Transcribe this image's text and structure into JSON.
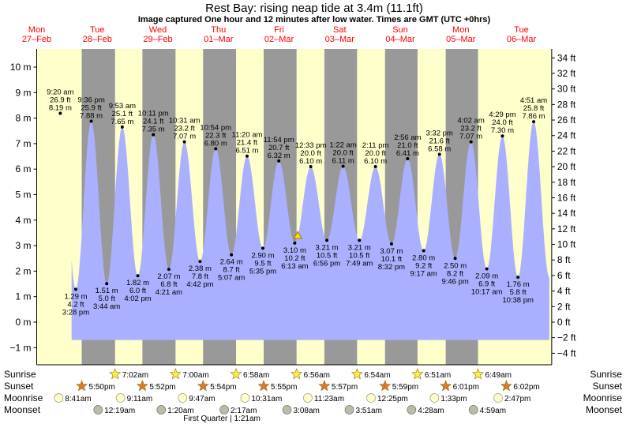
{
  "header": {
    "title": "Rest Bay: rising  neap tide at 3.4m (11.1ft)",
    "subtitle": "Image captured One hour and 12 minutes after low water. Times are GMT (UTC +0hrs)"
  },
  "colors": {
    "day": "#ffffcc",
    "night": "#999999",
    "tide": "#aab0ff",
    "day_label": "#ff0000"
  },
  "chart_data": {
    "type": "area",
    "title": "Rest Bay: rising  neap tide at 3.4m (11.1ft)",
    "x_axis": "time (days, GMT), 27-Feb to 06-Mar",
    "y_left_unit": "m",
    "y_right_unit": "ft",
    "ylim_m": [
      -1.5,
      10.9
    ],
    "grid": false,
    "days": [
      {
        "dow": "Mon",
        "date": "27–Feb"
      },
      {
        "dow": "Tue",
        "date": "28–Feb"
      },
      {
        "dow": "Wed",
        "date": "29–Feb"
      },
      {
        "dow": "Thu",
        "date": "01–Mar"
      },
      {
        "dow": "Fri",
        "date": "02–Mar"
      },
      {
        "dow": "Sat",
        "date": "03–Mar"
      },
      {
        "dow": "Sun",
        "date": "04–Mar"
      },
      {
        "dow": "Mon",
        "date": "05–Mar"
      },
      {
        "dow": "Tue",
        "date": "06–Mar"
      }
    ],
    "y_ticks_m": [
      -1,
      0,
      1,
      2,
      3,
      4,
      5,
      6,
      7,
      8,
      9,
      10
    ],
    "y_tick_labels_m": [
      "−1 m",
      "0 m",
      "1 m",
      "2 m",
      "3 m",
      "4 m",
      "5 m",
      "6 m",
      "7 m",
      "8 m",
      "9 m",
      "10 m"
    ],
    "y_ticks_ft": [
      -4,
      -2,
      0,
      2,
      4,
      6,
      8,
      10,
      12,
      14,
      16,
      18,
      20,
      22,
      24,
      26,
      28,
      30,
      32,
      34
    ],
    "y_tick_labels_ft": [
      "−4 ft",
      "−2 ft",
      "0 ft",
      "2 ft",
      "4 ft",
      "6 ft",
      "8 ft",
      "10 ft",
      "12 ft",
      "14 ft",
      "16 ft",
      "18 ft",
      "20 ft",
      "22 ft",
      "24 ft",
      "26 ft",
      "28 ft",
      "30 ft",
      "32 ft",
      "34 ft"
    ],
    "tides": [
      {
        "day": 0,
        "hour": 9.333,
        "m": 8.19,
        "time": "9:20 am",
        "ft": "26.9 ft",
        "mlabel": "8.19 m",
        "kind": "high"
      },
      {
        "day": 0,
        "hour": 15.467,
        "m": 1.29,
        "time": "3:28 pm",
        "ft": "4.2 ft",
        "mlabel": "1.29 m",
        "kind": "low"
      },
      {
        "day": 0,
        "hour": 21.6,
        "m": 7.88,
        "time": "9:36 pm",
        "ft": "25.9 ft",
        "mlabel": "7.88 m",
        "kind": "high"
      },
      {
        "day": 1,
        "hour": 3.733,
        "m": 1.51,
        "time": "3:44 am",
        "ft": "5.0 ft",
        "mlabel": "1.51 m",
        "kind": "low"
      },
      {
        "day": 1,
        "hour": 9.883,
        "m": 7.65,
        "time": "9:53 am",
        "ft": "25.1 ft",
        "mlabel": "7.65 m",
        "kind": "high"
      },
      {
        "day": 1,
        "hour": 16.033,
        "m": 1.82,
        "time": "4:02 pm",
        "ft": "6.0 ft",
        "mlabel": "1.82 m",
        "kind": "low"
      },
      {
        "day": 1,
        "hour": 22.183,
        "m": 7.35,
        "time": "10:11 pm",
        "ft": "24.1 ft",
        "mlabel": "7.35 m",
        "kind": "high"
      },
      {
        "day": 2,
        "hour": 4.35,
        "m": 2.07,
        "time": "4:21 am",
        "ft": "6.8 ft",
        "mlabel": "2.07 m",
        "kind": "low"
      },
      {
        "day": 2,
        "hour": 10.517,
        "m": 7.07,
        "time": "10:31 am",
        "ft": "23.2 ft",
        "mlabel": "7.07 m",
        "kind": "high"
      },
      {
        "day": 2,
        "hour": 16.7,
        "m": 2.38,
        "time": "4:42 pm",
        "ft": "7.8 ft",
        "mlabel": "2.38 m",
        "kind": "low"
      },
      {
        "day": 2,
        "hour": 22.9,
        "m": 6.8,
        "time": "10:54 pm",
        "ft": "22.3 ft",
        "mlabel": "6.80 m",
        "kind": "high"
      },
      {
        "day": 3,
        "hour": 5.117,
        "m": 2.64,
        "time": "5:07 am",
        "ft": "8.7 ft",
        "mlabel": "2.64 m",
        "kind": "low"
      },
      {
        "day": 3,
        "hour": 11.333,
        "m": 6.51,
        "time": "11:20 am",
        "ft": "21.4 ft",
        "mlabel": "6.51 m",
        "kind": "high"
      },
      {
        "day": 3,
        "hour": 17.583,
        "m": 2.9,
        "time": "5:35 pm",
        "ft": "9.5 ft",
        "mlabel": "2.90 m",
        "kind": "low"
      },
      {
        "day": 3,
        "hour": 23.9,
        "m": 6.32,
        "time": "11:54 pm",
        "ft": "20.7 ft",
        "mlabel": "6.32 m",
        "kind": "high"
      },
      {
        "day": 4,
        "hour": 6.217,
        "m": 3.1,
        "time": "6:13 am",
        "ft": "10.2 ft",
        "mlabel": "3.10 m",
        "kind": "low"
      },
      {
        "day": 4,
        "hour": 12.55,
        "m": 6.1,
        "time": "12:33 pm",
        "ft": "20.0 ft",
        "mlabel": "6.10 m",
        "kind": "high"
      },
      {
        "day": 4,
        "hour": 18.933,
        "m": 3.21,
        "time": "6:56 pm",
        "ft": "10.5 ft",
        "mlabel": "3.21 m",
        "kind": "low"
      },
      {
        "day": 5,
        "hour": 1.367,
        "m": 6.11,
        "time": "1:22 am",
        "ft": "20.0 ft",
        "mlabel": "6.11 m",
        "kind": "high"
      },
      {
        "day": 5,
        "hour": 7.817,
        "m": 3.21,
        "time": "7:49 am",
        "ft": "10.5 ft",
        "mlabel": "3.21 m",
        "kind": "low"
      },
      {
        "day": 5,
        "hour": 14.183,
        "m": 6.1,
        "time": "2:11 pm",
        "ft": "20.0 ft",
        "mlabel": "6.10 m",
        "kind": "high"
      },
      {
        "day": 5,
        "hour": 20.533,
        "m": 3.07,
        "time": "8:32 pm",
        "ft": "10.1 ft",
        "mlabel": "3.07 m",
        "kind": "low"
      },
      {
        "day": 6,
        "hour": 2.933,
        "m": 6.41,
        "time": "2:56 am",
        "ft": "21.0 ft",
        "mlabel": "6.41 m",
        "kind": "high"
      },
      {
        "day": 6,
        "hour": 9.283,
        "m": 2.8,
        "time": "9:17 am",
        "ft": "9.2 ft",
        "mlabel": "2.80 m",
        "kind": "low"
      },
      {
        "day": 6,
        "hour": 15.533,
        "m": 6.58,
        "time": "3:32 pm",
        "ft": "21.6 ft",
        "mlabel": "6.58 m",
        "kind": "high"
      },
      {
        "day": 6,
        "hour": 21.767,
        "m": 2.5,
        "time": "9:46 pm",
        "ft": "8.2 ft",
        "mlabel": "2.50 m",
        "kind": "low"
      },
      {
        "day": 7,
        "hour": 4.033,
        "m": 7.07,
        "time": "4:02 am",
        "ft": "23.2 ft",
        "mlabel": "7.07 m",
        "kind": "high"
      },
      {
        "day": 7,
        "hour": 10.283,
        "m": 2.09,
        "time": "10:17 am",
        "ft": "6.9 ft",
        "mlabel": "2.09 m",
        "kind": "low"
      },
      {
        "day": 7,
        "hour": 16.483,
        "m": 7.3,
        "time": "4:29 pm",
        "ft": "24.0 ft",
        "mlabel": "7.30 m",
        "kind": "high"
      },
      {
        "day": 7,
        "hour": 22.633,
        "m": 1.76,
        "time": "10:38 pm",
        "ft": "5.8 ft",
        "mlabel": "1.76 m",
        "kind": "low"
      },
      {
        "day": 8,
        "hour": 4.85,
        "m": 7.86,
        "time": "4:51 am",
        "ft": "25.8 ft",
        "mlabel": "7.86 m",
        "kind": "high"
      }
    ],
    "current": {
      "day": 4,
      "hour": 7.417,
      "m": 3.4
    },
    "sunrise": [
      {
        "day": 1,
        "hour": 7.033,
        "time": "7:02am"
      },
      {
        "day": 2,
        "hour": 7.0,
        "time": "7:00am"
      },
      {
        "day": 3,
        "hour": 6.967,
        "time": "6:58am"
      },
      {
        "day": 4,
        "hour": 6.933,
        "time": "6:56am"
      },
      {
        "day": 5,
        "hour": 6.9,
        "time": "6:54am"
      },
      {
        "day": 6,
        "hour": 6.85,
        "time": "6:51am"
      },
      {
        "day": 7,
        "hour": 6.817,
        "time": "6:49am"
      }
    ],
    "sunset": [
      {
        "day": 0,
        "hour": 17.833,
        "time": "5:50pm"
      },
      {
        "day": 1,
        "hour": 17.867,
        "time": "5:52pm"
      },
      {
        "day": 2,
        "hour": 17.9,
        "time": "5:54pm"
      },
      {
        "day": 3,
        "hour": 17.917,
        "time": "5:55pm"
      },
      {
        "day": 4,
        "hour": 17.95,
        "time": "5:57pm"
      },
      {
        "day": 5,
        "hour": 17.983,
        "time": "5:59pm"
      },
      {
        "day": 6,
        "hour": 18.017,
        "time": "6:01pm"
      },
      {
        "day": 7,
        "hour": 18.033,
        "time": "6:02pm"
      }
    ],
    "moonrise": [
      {
        "day": 0,
        "hour": 8.683,
        "time": "8:41am"
      },
      {
        "day": 1,
        "hour": 9.183,
        "time": "9:11am"
      },
      {
        "day": 2,
        "hour": 9.783,
        "time": "9:47am"
      },
      {
        "day": 3,
        "hour": 10.517,
        "time": "10:31am"
      },
      {
        "day": 4,
        "hour": 11.383,
        "time": "11:23am"
      },
      {
        "day": 5,
        "hour": 12.417,
        "time": "12:25pm"
      },
      {
        "day": 6,
        "hour": 13.55,
        "time": "1:33pm"
      },
      {
        "day": 7,
        "hour": 14.783,
        "time": "2:47pm"
      }
    ],
    "moonset": [
      {
        "day": 1,
        "hour": 0.317,
        "time": "12:19am"
      },
      {
        "day": 2,
        "hour": 1.333,
        "time": "1:20am"
      },
      {
        "day": 3,
        "hour": 2.283,
        "time": "2:17am"
      },
      {
        "day": 4,
        "hour": 3.133,
        "time": "3:08am"
      },
      {
        "day": 5,
        "hour": 3.85,
        "time": "3:51am"
      },
      {
        "day": 6,
        "hour": 4.467,
        "time": "4:28am"
      },
      {
        "day": 7,
        "hour": 4.983,
        "time": "4:59am"
      }
    ],
    "moon_phase": {
      "label": "First Quarter | 1:21am",
      "day": 3,
      "hour": 1.35
    },
    "row_labels": [
      "Sunrise",
      "Sunset",
      "Moonrise",
      "Moonset"
    ]
  }
}
